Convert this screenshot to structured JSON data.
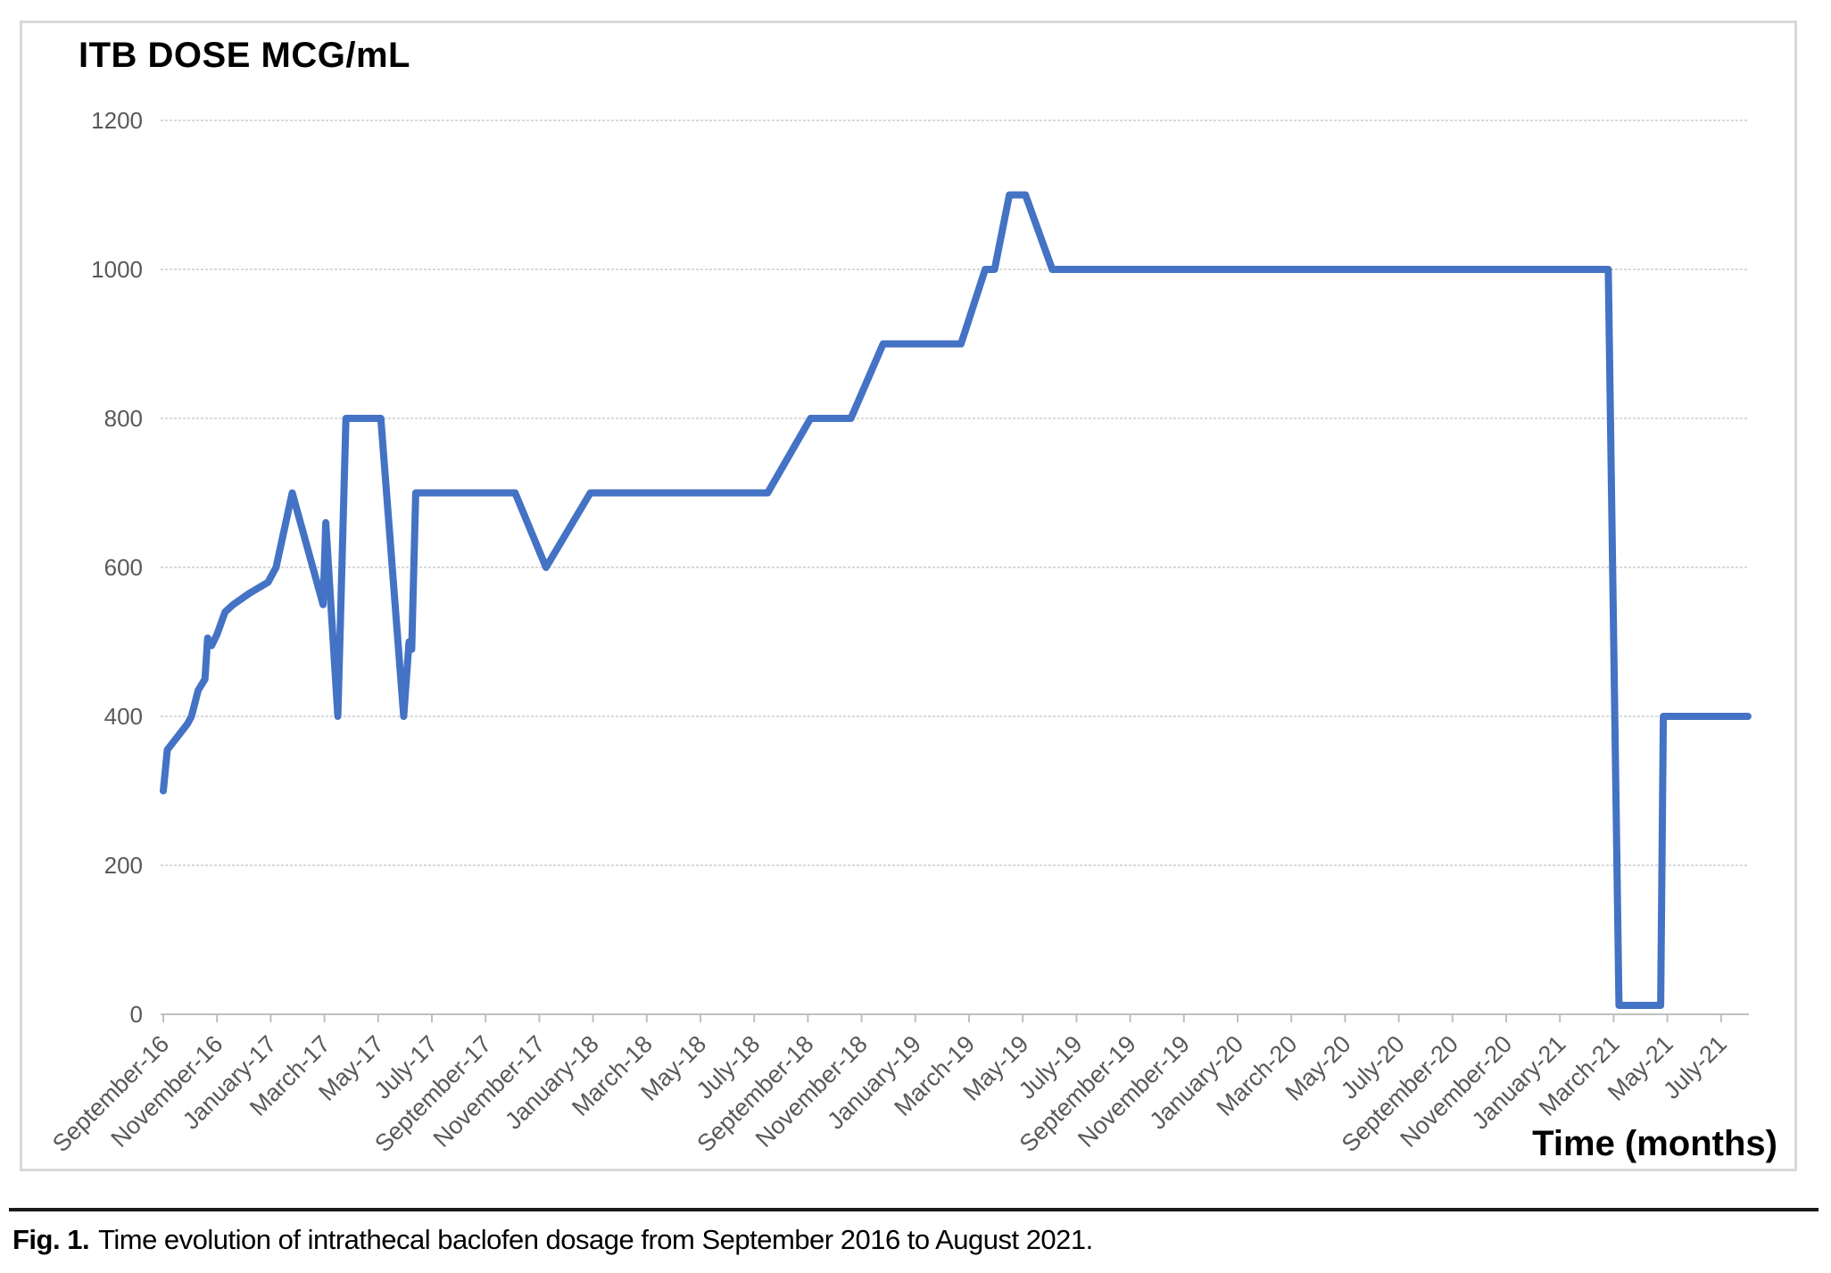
{
  "figure": {
    "title": "ITB DOSE MCG/mL",
    "x_axis_title": "Time (months)"
  },
  "caption": {
    "label": "Fig. 1.",
    "text": "Time evolution of intrathecal baclofen dosage from September 2016 to August 2021."
  },
  "chart_data": {
    "type": "line",
    "title": "ITB DOSE MCG/mL",
    "xlabel": "Time (months)",
    "ylabel": "",
    "ylim": [
      0,
      1200
    ],
    "y_ticks": [
      0,
      200,
      400,
      600,
      800,
      1000,
      1200
    ],
    "grid": true,
    "legend": false,
    "line_color": "#4472C4",
    "gridline_color": "#d9d9d9",
    "axis_color": "#bfbfbf",
    "tick_label_color": "#595959",
    "x_unit": "months since September 2016, labels every 2 months",
    "x_tick_labels": [
      "September-16",
      "November-16",
      "January-17",
      "March-17",
      "May-17",
      "July-17",
      "September-17",
      "November-17",
      "January-18",
      "March-18",
      "May-18",
      "July-18",
      "September-18",
      "November-18",
      "January-19",
      "March-19",
      "May-19",
      "July-19",
      "September-19",
      "November-19",
      "January-20",
      "March-20",
      "May-20",
      "July-20",
      "September-20",
      "November-20",
      "January-21",
      "March-21",
      "May-21",
      "July-21"
    ],
    "series": [
      {
        "name": "ITB DOSE MCG/mL",
        "points": [
          [
            0,
            300
          ],
          [
            0.15,
            355
          ],
          [
            0.9,
            390
          ],
          [
            1.05,
            400
          ],
          [
            1.3,
            435
          ],
          [
            1.55,
            450
          ],
          [
            1.65,
            505
          ],
          [
            1.8,
            495
          ],
          [
            2.0,
            510
          ],
          [
            2.3,
            540
          ],
          [
            2.6,
            550
          ],
          [
            3.2,
            565
          ],
          [
            3.9,
            580
          ],
          [
            4.2,
            600
          ],
          [
            4.8,
            700
          ],
          [
            5.95,
            550
          ],
          [
            6.05,
            660
          ],
          [
            6.5,
            400
          ],
          [
            6.8,
            800
          ],
          [
            8.1,
            800
          ],
          [
            8.95,
            400
          ],
          [
            9.15,
            500
          ],
          [
            9.25,
            490
          ],
          [
            9.4,
            700
          ],
          [
            13.1,
            700
          ],
          [
            14.25,
            600
          ],
          [
            15.9,
            700
          ],
          [
            22.5,
            700
          ],
          [
            24.1,
            800
          ],
          [
            25.6,
            800
          ],
          [
            26.8,
            900
          ],
          [
            29.7,
            900
          ],
          [
            30.6,
            1000
          ],
          [
            30.95,
            1000
          ],
          [
            31.5,
            1100
          ],
          [
            32.1,
            1100
          ],
          [
            33.1,
            1000
          ],
          [
            53.8,
            1000
          ],
          [
            54.2,
            12
          ],
          [
            55.75,
            12
          ],
          [
            55.85,
            400
          ],
          [
            59,
            400
          ]
        ]
      }
    ]
  }
}
